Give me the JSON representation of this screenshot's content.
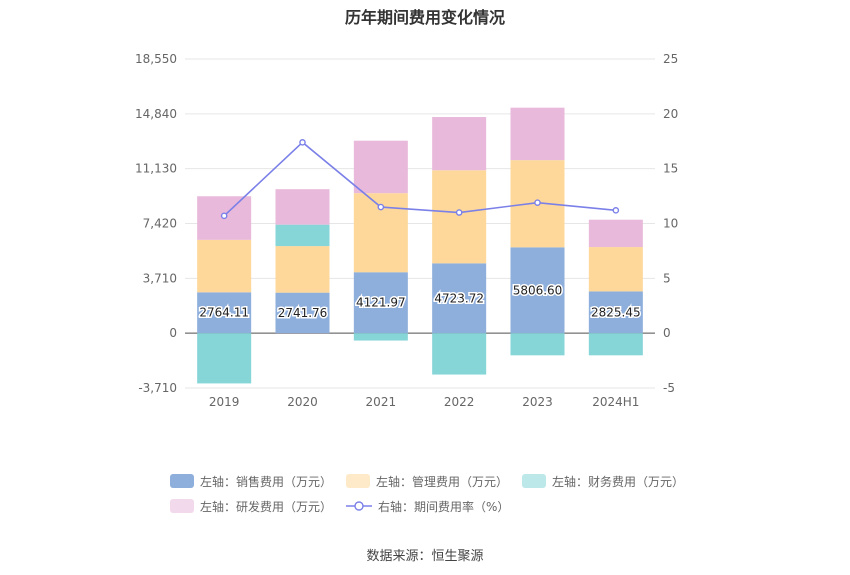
{
  "chart_data": {
    "type": "bar",
    "title": "历年期间费用变化情况",
    "categories": [
      "2019",
      "2020",
      "2021",
      "2022",
      "2023",
      "2024H1"
    ],
    "left_axis": {
      "ticks": [
        "18,550",
        "14,840",
        "11,130",
        "7,420",
        "3,710",
        "0",
        "-3,710"
      ],
      "ylim": [
        -3710,
        18550
      ]
    },
    "right_axis": {
      "ticks": [
        "25",
        "20",
        "15",
        "10",
        "5",
        "0",
        "-5"
      ],
      "ylim": [
        -5,
        25
      ]
    },
    "series": [
      {
        "name": "左轴：销售费用（万元）",
        "axis": "left",
        "type": "bar",
        "color": "#8eaedb",
        "values": [
          2764.11,
          2741.76,
          4121.97,
          4723.72,
          5806.6,
          2825.45
        ],
        "labels": [
          "2764.11",
          "2741.76",
          "4121.97",
          "4723.72",
          "5806.60",
          "2825.45"
        ]
      },
      {
        "name": "左轴：管理费用（万元）",
        "axis": "left",
        "type": "bar",
        "color": "#fdd89a",
        "values": [
          3550,
          3150,
          5350,
          6300,
          5900,
          3000
        ]
      },
      {
        "name": "左轴：财务费用（万元）",
        "axis": "left",
        "type": "bar",
        "color": "#86d6d8",
        "values": [
          -3400,
          1450,
          -500,
          -2800,
          -1500,
          -1500
        ]
      },
      {
        "name": "左轴：研发费用（万元）",
        "axis": "left",
        "type": "bar",
        "color": "#e8b9da",
        "values": [
          2950,
          2400,
          3550,
          3600,
          3550,
          1850
        ]
      },
      {
        "name": "右轴：期间费用率（%）",
        "axis": "right",
        "type": "line",
        "color": "#7b80e8",
        "values": [
          10.7,
          17.4,
          11.5,
          11.0,
          11.9,
          11.2
        ]
      }
    ],
    "legend_position": "bottom",
    "grid": true
  },
  "source": "数据来源：恒生聚源"
}
